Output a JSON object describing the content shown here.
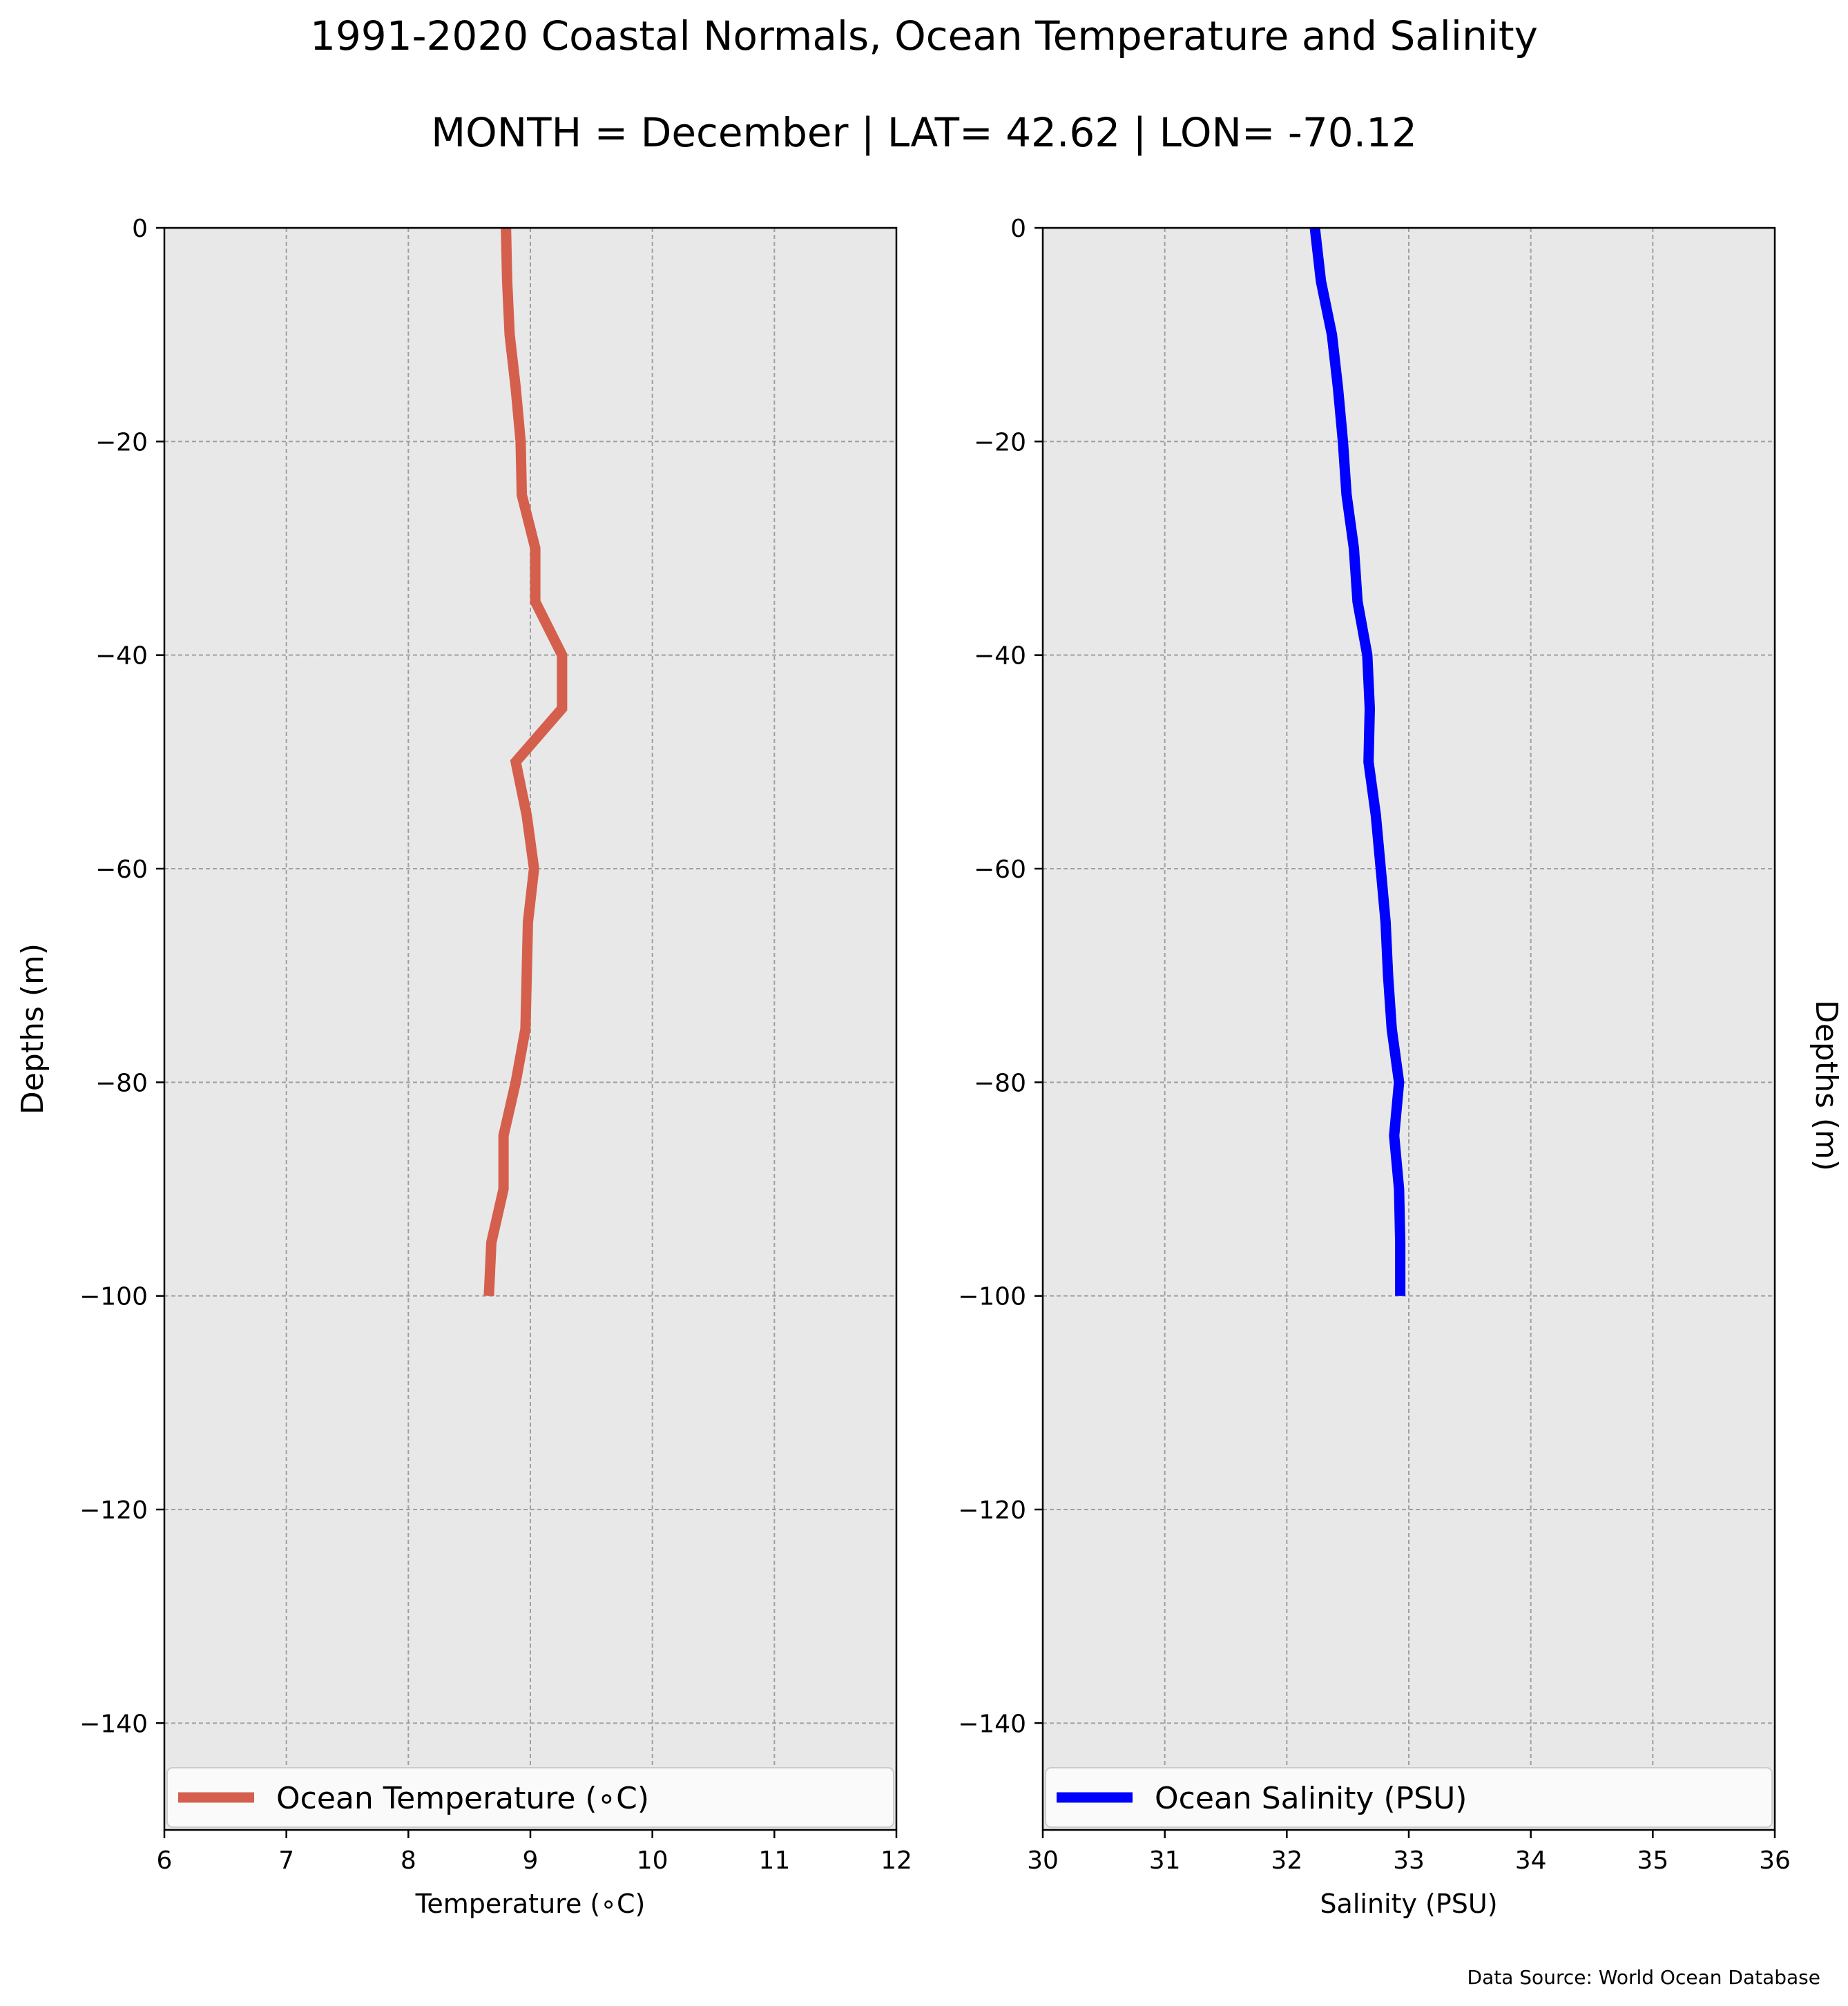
{
  "figure": {
    "title": "1991-2020 Coastal Normals, Ocean Temperature and Salinity",
    "subtitle": "MONTH = December | LAT= 42.62 | LON= -70.12",
    "source_note": "Data Source: World Ocean Database"
  },
  "chart_data": [
    {
      "type": "line",
      "xlabel": "Temperature (∘C)",
      "ylabel": "Depths (m)",
      "xlim": [
        6,
        12
      ],
      "ylim": [
        -150,
        0
      ],
      "x_ticks": [
        "6",
        "7",
        "8",
        "9",
        "10",
        "11",
        "12"
      ],
      "y_ticks": [
        "0",
        "−20",
        "−40",
        "−60",
        "−80",
        "−100",
        "−120",
        "−140"
      ],
      "grid": true,
      "legend_position": "bottom",
      "series": [
        {
          "name": "Ocean Temperature (∘C)",
          "color": "#d55f4d",
          "x": [
            8.8,
            8.81,
            8.83,
            8.88,
            8.92,
            8.93,
            9.04,
            9.04,
            9.26,
            9.26,
            8.88,
            8.97,
            9.03,
            8.98,
            8.97,
            8.96,
            8.88,
            8.78,
            8.78,
            8.68,
            8.66
          ],
          "y": [
            0,
            -5,
            -10,
            -15,
            -20,
            -25,
            -30,
            -35,
            -40,
            -45,
            -50,
            -55,
            -60,
            -65,
            -70,
            -75,
            -80,
            -85,
            -90,
            -95,
            -100
          ]
        }
      ]
    },
    {
      "type": "line",
      "xlabel": "Salinity (PSU)",
      "ylabel": "Depths (m)",
      "xlim": [
        30,
        36
      ],
      "ylim": [
        -150,
        0
      ],
      "x_ticks": [
        "30",
        "31",
        "32",
        "33",
        "34",
        "35",
        "36"
      ],
      "y_ticks": [
        "0",
        "−20",
        "−40",
        "−60",
        "−80",
        "−100",
        "−120",
        "−140"
      ],
      "grid": true,
      "legend_position": "bottom",
      "series": [
        {
          "name": "Ocean Salinity (PSU)",
          "color": "#0000ff",
          "x": [
            32.23,
            32.28,
            32.37,
            32.42,
            32.46,
            32.49,
            32.55,
            32.58,
            32.66,
            32.68,
            32.67,
            32.73,
            32.77,
            32.81,
            32.83,
            32.86,
            32.92,
            32.88,
            32.92,
            32.93,
            32.93
          ],
          "y": [
            0,
            -5,
            -10,
            -15,
            -20,
            -25,
            -30,
            -35,
            -40,
            -45,
            -50,
            -55,
            -60,
            -65,
            -70,
            -75,
            -80,
            -85,
            -90,
            -95,
            -100
          ]
        }
      ]
    }
  ]
}
